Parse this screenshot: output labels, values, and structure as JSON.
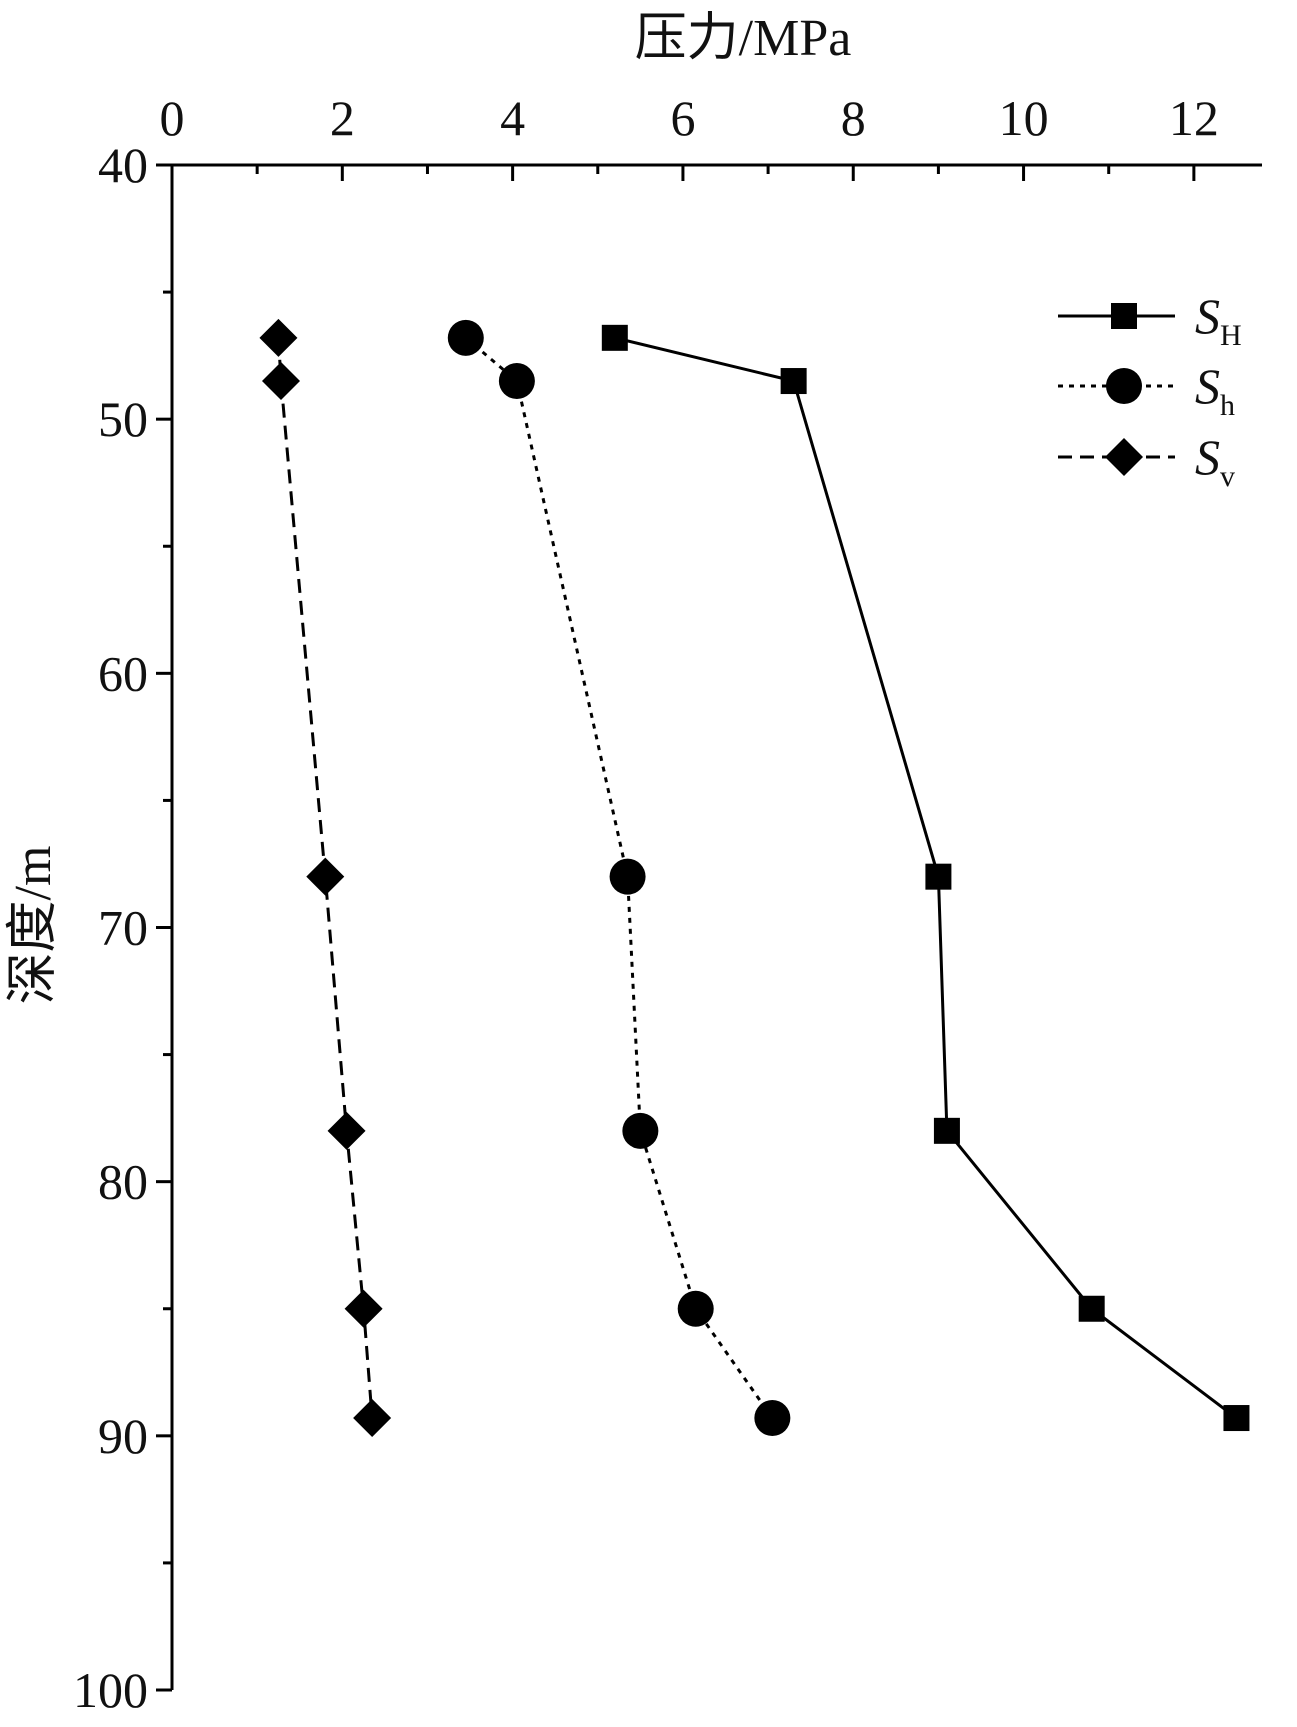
{
  "chart_data": {
    "type": "line",
    "xlabel": "压力/MPa",
    "ylabel": "深度/m",
    "xlim": [
      0,
      12.8
    ],
    "ylim": [
      40,
      100
    ],
    "y_inverted": true,
    "x_axis_position": "top",
    "x_ticks": [
      0,
      2,
      4,
      6,
      8,
      10,
      12
    ],
    "x_tick_labels": [
      "0",
      "2",
      "4",
      "6",
      "8",
      "10",
      "12"
    ],
    "y_ticks": [
      40,
      50,
      60,
      70,
      80,
      90,
      100
    ],
    "y_tick_labels": [
      "40",
      "50",
      "60",
      "70",
      "80",
      "90",
      "100"
    ],
    "grid": false,
    "legend_position": "top-right",
    "series": [
      {
        "name": "S",
        "subscript": "H",
        "line_style": "solid",
        "marker": "square",
        "x": [
          5.2,
          7.3,
          9.0,
          9.1,
          10.8,
          12.5
        ],
        "y": [
          46.8,
          48.5,
          68.0,
          78.0,
          85.0,
          89.3
        ]
      },
      {
        "name": "S",
        "subscript": "h",
        "line_style": "dotted",
        "marker": "circle",
        "x": [
          3.45,
          4.05,
          5.35,
          5.5,
          6.15,
          7.05
        ],
        "y": [
          46.8,
          48.5,
          68.0,
          78.0,
          85.0,
          89.3
        ]
      },
      {
        "name": "S",
        "subscript": "v",
        "line_style": "dashed",
        "marker": "diamond",
        "x": [
          1.25,
          1.28,
          1.8,
          2.05,
          2.25,
          2.35
        ],
        "y": [
          46.8,
          48.5,
          68.0,
          78.0,
          85.0,
          89.3
        ]
      }
    ],
    "colors": {
      "ink": "#000000",
      "background": "#ffffff"
    }
  }
}
